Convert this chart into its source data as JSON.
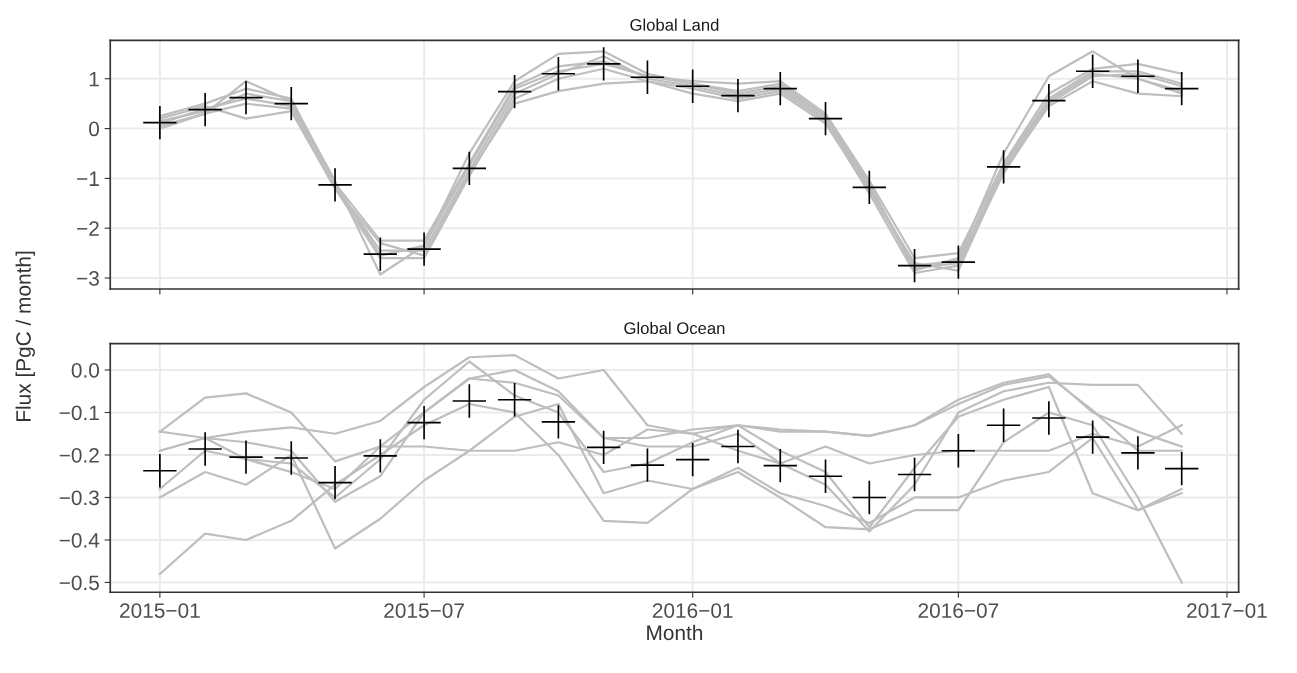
{
  "chart_data": [
    {
      "type": "line",
      "title": "Global Land",
      "ylabel": "Flux [PgC / month]",
      "grid": true,
      "tick_labels": "y",
      "x": [
        "2015-01",
        "2015-02",
        "2015-03",
        "2015-04",
        "2015-05",
        "2015-06",
        "2015-07",
        "2015-08",
        "2015-09",
        "2015-10",
        "2015-11",
        "2015-12",
        "2016-01",
        "2016-02",
        "2016-03",
        "2016-04",
        "2016-05",
        "2016-06",
        "2016-07",
        "2016-08",
        "2016-09",
        "2016-10",
        "2016-11",
        "2016-12"
      ],
      "xlim": [
        "2014-11-28",
        "2017-01-09"
      ],
      "xticks": [
        {
          "value": "2015-01",
          "label": null
        },
        {
          "value": "2015-07",
          "label": null
        },
        {
          "value": "2016-01",
          "label": null
        },
        {
          "value": "2016-07",
          "label": null
        },
        {
          "value": "2017-01",
          "label": null
        }
      ],
      "ylim": [
        -3.22,
        1.77
      ],
      "yticks": [
        {
          "value": -3,
          "label": "−3"
        },
        {
          "value": -2,
          "label": "−2"
        },
        {
          "value": -1,
          "label": "−1"
        },
        0,
        1
      ],
      "series": [
        {
          "color": "#bebebe",
          "values": [
            0.05,
            0.3,
            0.95,
            0.55,
            -1.05,
            -2.93,
            -2.35,
            -0.5,
            0.95,
            1.5,
            1.55,
            1.1,
            0.9,
            0.75,
            0.9,
            0.25,
            -1.1,
            -2.85,
            -2.6,
            -0.5,
            1.05,
            1.55,
            1.0,
            0.75
          ]
        },
        {
          "color": "#bebebe",
          "values": [
            0.2,
            0.45,
            0.2,
            0.35,
            -1.2,
            -2.3,
            -2.55,
            -0.9,
            0.5,
            0.75,
            0.9,
            0.95,
            0.7,
            0.55,
            0.7,
            0.1,
            -1.25,
            -2.7,
            -2.85,
            -0.85,
            0.45,
            0.95,
            0.7,
            0.65
          ]
        },
        {
          "color": "#bebebe",
          "values": [
            0.25,
            0.5,
            0.8,
            0.6,
            -1.1,
            -2.25,
            -2.25,
            -0.7,
            0.85,
            1.25,
            1.35,
            1.05,
            0.95,
            0.9,
            0.95,
            0.3,
            -1.05,
            -2.6,
            -2.5,
            -0.7,
            0.7,
            1.2,
            1.3,
            1.1
          ]
        },
        {
          "color": "#bebebe",
          "values": [
            0.0,
            0.3,
            0.5,
            0.4,
            -1.2,
            -2.6,
            -2.6,
            -0.95,
            0.6,
            1.0,
            1.2,
            0.95,
            0.8,
            0.6,
            0.75,
            0.15,
            -1.3,
            -2.9,
            -2.75,
            -0.9,
            0.5,
            1.05,
            1.1,
            0.85
          ]
        },
        {
          "color": "#bebebe",
          "values": [
            0.15,
            0.35,
            0.7,
            0.55,
            -1.15,
            -2.45,
            -2.45,
            -0.85,
            0.7,
            1.1,
            1.45,
            1.0,
            0.85,
            0.65,
            0.8,
            0.2,
            -1.2,
            -2.8,
            -2.7,
            -0.8,
            0.55,
            1.1,
            1.0,
            0.7
          ]
        },
        {
          "color": "#bebebe",
          "values": [
            0.1,
            0.4,
            0.6,
            0.45,
            -1.1,
            -2.55,
            -2.35,
            -0.75,
            0.8,
            1.15,
            1.3,
            1.05,
            0.9,
            0.7,
            0.85,
            0.25,
            -1.15,
            -2.75,
            -2.65,
            -0.75,
            0.6,
            1.15,
            1.15,
            0.9
          ]
        },
        {
          "type": "scatter",
          "marker": "cross",
          "color": "#000000",
          "values": [
            0.12,
            0.38,
            0.62,
            0.5,
            -1.13,
            -2.52,
            -2.42,
            -0.8,
            0.74,
            1.1,
            1.3,
            1.03,
            0.85,
            0.66,
            0.8,
            0.2,
            -1.18,
            -2.75,
            -2.68,
            -0.77,
            0.56,
            1.15,
            1.05,
            0.8
          ]
        }
      ]
    },
    {
      "type": "line",
      "title": "Global Ocean",
      "xlabel": "Month",
      "grid": true,
      "x": [
        "2015-01",
        "2015-02",
        "2015-03",
        "2015-04",
        "2015-05",
        "2015-06",
        "2015-07",
        "2015-08",
        "2015-09",
        "2015-10",
        "2015-11",
        "2015-12",
        "2016-01",
        "2016-02",
        "2016-03",
        "2016-04",
        "2016-05",
        "2016-06",
        "2016-07",
        "2016-08",
        "2016-09",
        "2016-10",
        "2016-11",
        "2016-12"
      ],
      "xlim": [
        "2014-11-28",
        "2017-01-09"
      ],
      "xticks": [
        {
          "value": "2015-01",
          "label": "2015−01"
        },
        {
          "value": "2015-07",
          "label": "2015−07"
        },
        {
          "value": "2016-01",
          "label": "2016−01"
        },
        {
          "value": "2016-07",
          "label": "2016−07"
        },
        {
          "value": "2017-01",
          "label": "2017−01"
        }
      ],
      "ylim": [
        -0.523,
        0.062
      ],
      "yticks": [
        {
          "value": -0.5,
          "label": "−0.5"
        },
        {
          "value": -0.4,
          "label": "−0.4"
        },
        {
          "value": -0.3,
          "label": "−0.3"
        },
        {
          "value": -0.2,
          "label": "−0.2"
        },
        {
          "value": -0.1,
          "label": "−0.1"
        },
        {
          "value": 0,
          "label": "0.0"
        }
      ],
      "series": [
        {
          "color": "#bebebe",
          "values": [
            -0.145,
            -0.065,
            -0.055,
            -0.1,
            -0.215,
            -0.18,
            -0.1,
            -0.02,
            0.0,
            -0.05,
            -0.16,
            -0.16,
            -0.14,
            -0.13,
            -0.14,
            -0.145,
            -0.155,
            -0.13,
            -0.08,
            -0.035,
            -0.015,
            -0.095,
            -0.19,
            -0.19
          ]
        },
        {
          "color": "#bebebe",
          "values": [
            -0.48,
            -0.385,
            -0.4,
            -0.355,
            -0.27,
            -0.2,
            -0.13,
            -0.08,
            -0.1,
            -0.2,
            -0.355,
            -0.36,
            -0.28,
            -0.24,
            -0.3,
            -0.37,
            -0.375,
            -0.33,
            -0.33,
            -0.17,
            -0.1,
            -0.13,
            -0.3,
            -0.5
          ]
        },
        {
          "color": "#bebebe",
          "values": [
            -0.3,
            -0.24,
            -0.27,
            -0.2,
            -0.42,
            -0.35,
            -0.26,
            -0.19,
            -0.11,
            -0.08,
            -0.29,
            -0.26,
            -0.28,
            -0.23,
            -0.29,
            -0.32,
            -0.36,
            -0.3,
            -0.3,
            -0.26,
            -0.24,
            -0.16,
            -0.33,
            -0.29
          ]
        },
        {
          "color": "#bebebe",
          "values": [
            -0.145,
            -0.16,
            -0.145,
            -0.135,
            -0.15,
            -0.12,
            -0.04,
            0.03,
            0.035,
            -0.02,
            0.0,
            -0.13,
            -0.15,
            -0.13,
            -0.145,
            -0.145,
            -0.155,
            -0.13,
            -0.07,
            -0.03,
            -0.01,
            -0.1,
            -0.145,
            -0.18
          ]
        },
        {
          "color": "#bebebe",
          "values": [
            -0.19,
            -0.16,
            -0.17,
            -0.19,
            -0.31,
            -0.25,
            -0.1,
            -0.02,
            -0.03,
            -0.06,
            -0.16,
            -0.18,
            -0.18,
            -0.15,
            -0.22,
            -0.27,
            -0.38,
            -0.27,
            -0.1,
            -0.05,
            -0.03,
            -0.035,
            -0.035,
            -0.15
          ]
        },
        {
          "color": "#bebebe",
          "values": [
            -0.28,
            -0.19,
            -0.21,
            -0.24,
            -0.28,
            -0.18,
            -0.18,
            -0.19,
            -0.19,
            -0.17,
            -0.2,
            -0.14,
            -0.15,
            -0.19,
            -0.22,
            -0.18,
            -0.22,
            -0.2,
            -0.19,
            -0.19,
            -0.19,
            -0.15,
            -0.18,
            -0.13
          ]
        },
        {
          "color": "#bebebe",
          "values": [
            -0.19,
            -0.16,
            -0.21,
            -0.22,
            -0.3,
            -0.21,
            -0.07,
            0.02,
            -0.06,
            -0.1,
            -0.24,
            -0.22,
            -0.17,
            -0.13,
            -0.19,
            -0.24,
            -0.37,
            -0.23,
            -0.11,
            -0.07,
            -0.04,
            -0.29,
            -0.33,
            -0.28
          ]
        },
        {
          "type": "scatter",
          "marker": "cross",
          "color": "#000000",
          "values": [
            -0.237,
            -0.186,
            -0.205,
            -0.207,
            -0.265,
            -0.202,
            -0.124,
            -0.073,
            -0.07,
            -0.122,
            -0.182,
            -0.224,
            -0.211,
            -0.18,
            -0.225,
            -0.25,
            -0.3,
            -0.246,
            -0.19,
            -0.13,
            -0.113,
            -0.158,
            -0.195,
            -0.232
          ]
        }
      ]
    }
  ]
}
